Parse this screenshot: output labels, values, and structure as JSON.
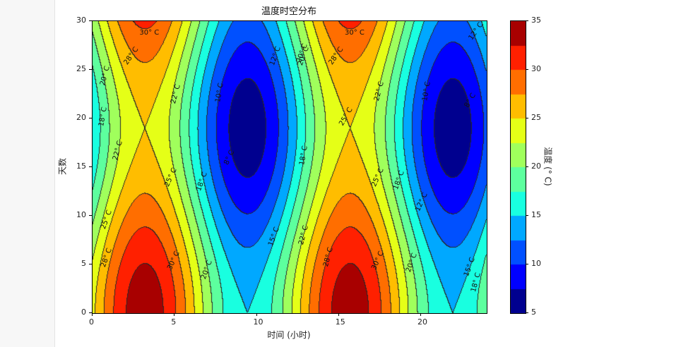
{
  "page": {
    "left_panel_color": "#f7f7f7"
  },
  "chart": {
    "title": "温度时空分布",
    "xlabel": "时间 (小时)",
    "ylabel": "天数",
    "colorbar_label": "温度 (° C)",
    "xticks": [
      "0",
      "5",
      "10",
      "15",
      "20"
    ],
    "yticks": [
      "0",
      "5",
      "10",
      "15",
      "20",
      "25",
      "30"
    ],
    "cbar_ticks": [
      "5",
      "10",
      "15",
      "20",
      "25",
      "30",
      "35"
    ]
  },
  "chart_data": {
    "type": "heatmap",
    "subtype": "filled-contour",
    "title": "温度时空分布",
    "xlabel": "时间 (小时)",
    "ylabel": "天数",
    "colorbar_label": "温度 (° C)",
    "xlim": [
      0,
      24
    ],
    "ylim": [
      0,
      30
    ],
    "clim": [
      5,
      35
    ],
    "xticks": [
      0,
      5,
      10,
      15,
      20
    ],
    "yticks": [
      0,
      5,
      10,
      15,
      20,
      25,
      30
    ],
    "colorbar_ticks": [
      5,
      10,
      15,
      20,
      25,
      30,
      35
    ],
    "levels": [
      5,
      7.5,
      10,
      12.5,
      15,
      17.5,
      20,
      22.5,
      25,
      27.5,
      30,
      32.5,
      35
    ],
    "level_colors": [
      "#00008f",
      "#0000ff",
      "#0050ff",
      "#00a8ff",
      "#19ffe0",
      "#5dff9e",
      "#a0ff5c",
      "#e5ff17",
      "#ffbd00",
      "#ff6e00",
      "#ff2000",
      "#a80000"
    ],
    "colormap": "jet",
    "approx_field": "T = 20 + 9.5*cos(2π(x-3.2)/12.5) + 4.5*cos(2πy/38)",
    "features": {
      "hot_maxima": [
        {
          "x": 3.2,
          "y": 0,
          "T": 34
        },
        {
          "x": 15.7,
          "y": 0,
          "T": 34
        },
        {
          "x": 3.2,
          "y": 30,
          "T": 31
        },
        {
          "x": 15.7,
          "y": 30,
          "T": 31
        }
      ],
      "cold_minima": [
        {
          "x": 9.5,
          "y": 19,
          "T": 6
        },
        {
          "x": 22,
          "y": 19,
          "T": 6
        }
      ],
      "saddles": [
        {
          "x": 3.2,
          "y": 19,
          "T": 25
        },
        {
          "x": 15.7,
          "y": 19,
          "T": 25
        }
      ]
    },
    "contour_labels": [
      {
        "text": "30° C",
        "x": 3.5,
        "y": 28.6,
        "rot": 0
      },
      {
        "text": "28° C",
        "x": 2.4,
        "y": 26.2,
        "rot": -55
      },
      {
        "text": "20° C",
        "x": 0.8,
        "y": 24.2,
        "rot": -75
      },
      {
        "text": "18° C",
        "x": 0.7,
        "y": 20.0,
        "rot": -80
      },
      {
        "text": "22° C",
        "x": 5.1,
        "y": 22.3,
        "rot": -75
      },
      {
        "text": "22° C",
        "x": 1.6,
        "y": 16.5,
        "rot": -75
      },
      {
        "text": "25° C",
        "x": 4.8,
        "y": 13.8,
        "rot": -65
      },
      {
        "text": "18° C",
        "x": 6.7,
        "y": 13.3,
        "rot": -70
      },
      {
        "text": "25° C",
        "x": 0.9,
        "y": 9.4,
        "rot": -70
      },
      {
        "text": "28° C",
        "x": 0.9,
        "y": 5.5,
        "rot": -70
      },
      {
        "text": "30° C",
        "x": 5.0,
        "y": 5.2,
        "rot": -65
      },
      {
        "text": "20° C",
        "x": 7.0,
        "y": 4.3,
        "rot": -70
      },
      {
        "text": "12° C",
        "x": 11.2,
        "y": 26.2,
        "rot": -70
      },
      {
        "text": "10° C",
        "x": 7.8,
        "y": 22.5,
        "rot": -80
      },
      {
        "text": "8° C",
        "x": 8.5,
        "y": 15.8,
        "rot": -65
      },
      {
        "text": "20° C",
        "x": 12.9,
        "y": 26.2,
        "rot": -70
      },
      {
        "text": "18° C",
        "x": 12.9,
        "y": 16.0,
        "rot": -80
      },
      {
        "text": "15° C",
        "x": 11.1,
        "y": 7.7,
        "rot": -70
      },
      {
        "text": "22° C",
        "x": 12.9,
        "y": 7.8,
        "rot": -75
      },
      {
        "text": "25° C",
        "x": 15.5,
        "y": 20.0,
        "rot": -60
      },
      {
        "text": "28° C",
        "x": 14.4,
        "y": 5.6,
        "rot": -75
      },
      {
        "text": "30° C",
        "x": 17.4,
        "y": 5.2,
        "rot": -65
      },
      {
        "text": "30° C",
        "x": 16.0,
        "y": 28.6,
        "rot": 0
      },
      {
        "text": "28° C",
        "x": 14.9,
        "y": 26.2,
        "rot": -55
      },
      {
        "text": "20° C",
        "x": 12.8,
        "y": 26.5,
        "rot": -70
      },
      {
        "text": "22° C",
        "x": 17.5,
        "y": 22.6,
        "rot": -75
      },
      {
        "text": "25° C",
        "x": 17.4,
        "y": 13.8,
        "rot": -65
      },
      {
        "text": "18° C",
        "x": 18.7,
        "y": 13.5,
        "rot": -70
      },
      {
        "text": "12° C",
        "x": 20.1,
        "y": 11.2,
        "rot": -65
      },
      {
        "text": "20° C",
        "x": 19.5,
        "y": 5.0,
        "rot": -70
      },
      {
        "text": "10° C",
        "x": 20.4,
        "y": 22.6,
        "rot": -80
      },
      {
        "text": "8° C",
        "x": 23.2,
        "y": 21.7,
        "rot": -60
      },
      {
        "text": "12° C",
        "x": 23.4,
        "y": 28.8,
        "rot": -55
      },
      {
        "text": "15° C",
        "x": 23.0,
        "y": 4.6,
        "rot": -70
      },
      {
        "text": "18° C",
        "x": 23.4,
        "y": 3.0,
        "rot": -75
      }
    ]
  }
}
